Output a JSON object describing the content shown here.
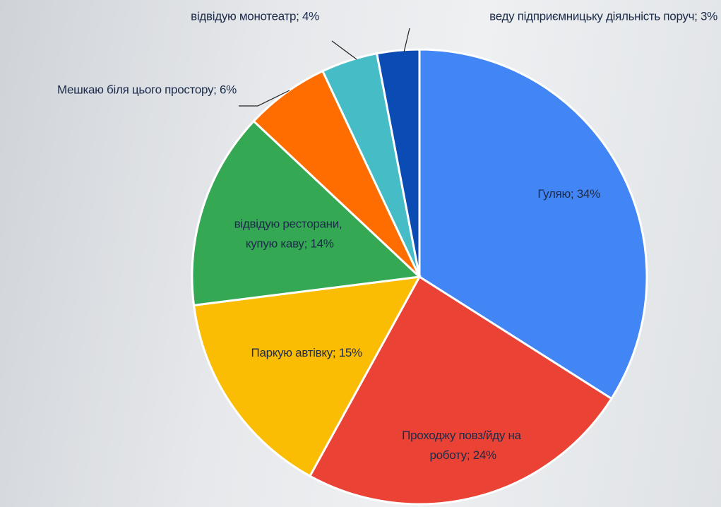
{
  "chart_data": {
    "type": "pie",
    "categories": [
      "Гуляю; 34%",
      "Проходжу повз/йду на роботу; 24%",
      "Паркую автівку; 15%",
      "відвідую ресторани, купую каву; 14%",
      "Мешкаю біля цього простору; 6%",
      "відвідую монотеатр; 4%",
      "веду підприємницьку діяльність поруч; 3%"
    ],
    "values": [
      34,
      24,
      15,
      14,
      6,
      4,
      3
    ],
    "colors": [
      "#4285f4",
      "#ea4335",
      "#fbbc04",
      "#34a853",
      "#ff6d01",
      "#46bdc6",
      "#0b4cb4"
    ]
  }
}
